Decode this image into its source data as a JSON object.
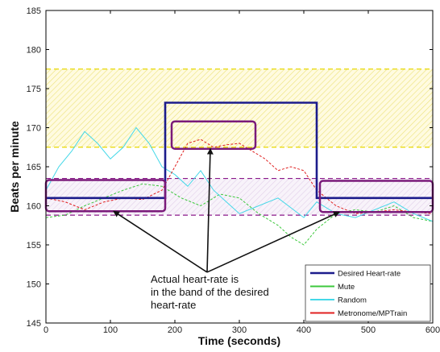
{
  "chart_data": {
    "type": "line",
    "title": "",
    "xlabel": "Time (seconds)",
    "ylabel": "Beats per minute",
    "xlim": [
      0,
      600
    ],
    "ylim": [
      145,
      185
    ],
    "xticks": [
      0,
      100,
      200,
      300,
      400,
      500,
      600
    ],
    "yticks": [
      145,
      150,
      155,
      160,
      165,
      170,
      175,
      180,
      185
    ],
    "grid": false,
    "legend_position": "bottom-right",
    "bands": [
      {
        "y0": 167.5,
        "y1": 177.5,
        "color": "#e8d800",
        "style": "dashed-hatched"
      },
      {
        "y0": 158.8,
        "y1": 163.5,
        "color": "#8b1a8b",
        "style": "dashed-hatched"
      }
    ],
    "series": [
      {
        "name": "Desired Heart-rate",
        "color": "#1c1c8c",
        "x": [
          0,
          185,
          185,
          420,
          420,
          600
        ],
        "y": [
          161,
          161,
          173.2,
          173.2,
          161,
          161
        ]
      },
      {
        "name": "Mute",
        "color": "#3cc83c",
        "x": [
          0,
          30,
          60,
          90,
          120,
          150,
          180,
          210,
          240,
          270,
          300,
          330,
          360,
          380,
          400,
          420,
          450,
          480,
          510,
          540,
          570,
          600
        ],
        "y": [
          158.5,
          158.8,
          160,
          161,
          162,
          162.8,
          162.5,
          161,
          160,
          161.5,
          161,
          159,
          157.5,
          156,
          155,
          157,
          159,
          159.5,
          159.2,
          160,
          158.5,
          158
        ]
      },
      {
        "name": "Random",
        "color": "#44d8e8",
        "x": [
          0,
          20,
          40,
          60,
          80,
          100,
          120,
          140,
          160,
          180,
          200,
          220,
          240,
          260,
          280,
          300,
          330,
          360,
          400,
          420,
          450,
          480,
          510,
          540,
          570,
          600
        ],
        "y": [
          162,
          165,
          167,
          169.5,
          168,
          166,
          167.5,
          170,
          168,
          165,
          164,
          162.5,
          164.5,
          162,
          160.5,
          159,
          160,
          161,
          158.5,
          160.5,
          159,
          158.5,
          159.5,
          160.5,
          159,
          158
        ]
      },
      {
        "name": "Metronome/MPTrain",
        "color": "#e02020",
        "x": [
          0,
          30,
          60,
          90,
          120,
          150,
          180,
          200,
          220,
          240,
          260,
          280,
          300,
          320,
          340,
          360,
          380,
          400,
          420,
          450,
          480,
          510,
          540,
          570,
          600
        ],
        "y": [
          161,
          160.5,
          159.5,
          160.5,
          161,
          160.8,
          162,
          165,
          168,
          168.5,
          167.5,
          167.8,
          168,
          167,
          166,
          164.5,
          165,
          164.5,
          162,
          160,
          159,
          159.2,
          159.5,
          159.2,
          159
        ]
      }
    ],
    "highlight_boxes": [
      {
        "x0": 0,
        "x1": 185,
        "y0": 159.3,
        "y1": 163.3,
        "color": "#7a1a7a"
      },
      {
        "x0": 195,
        "x1": 325,
        "y0": 167.3,
        "y1": 170.8,
        "color": "#7a1a7a"
      },
      {
        "x0": 425,
        "x1": 600,
        "y0": 159.2,
        "y1": 163.2,
        "color": "#7a1a7a"
      }
    ],
    "annotation": {
      "lines": [
        "Actual heart-rate is",
        "in the band of the desired",
        "heart-rate"
      ],
      "arrow_from": [
        250,
        151.5
      ],
      "arrow_targets": [
        [
          105,
          159.3
        ],
        [
          255,
          167.3
        ],
        [
          455,
          159.2
        ]
      ]
    }
  }
}
